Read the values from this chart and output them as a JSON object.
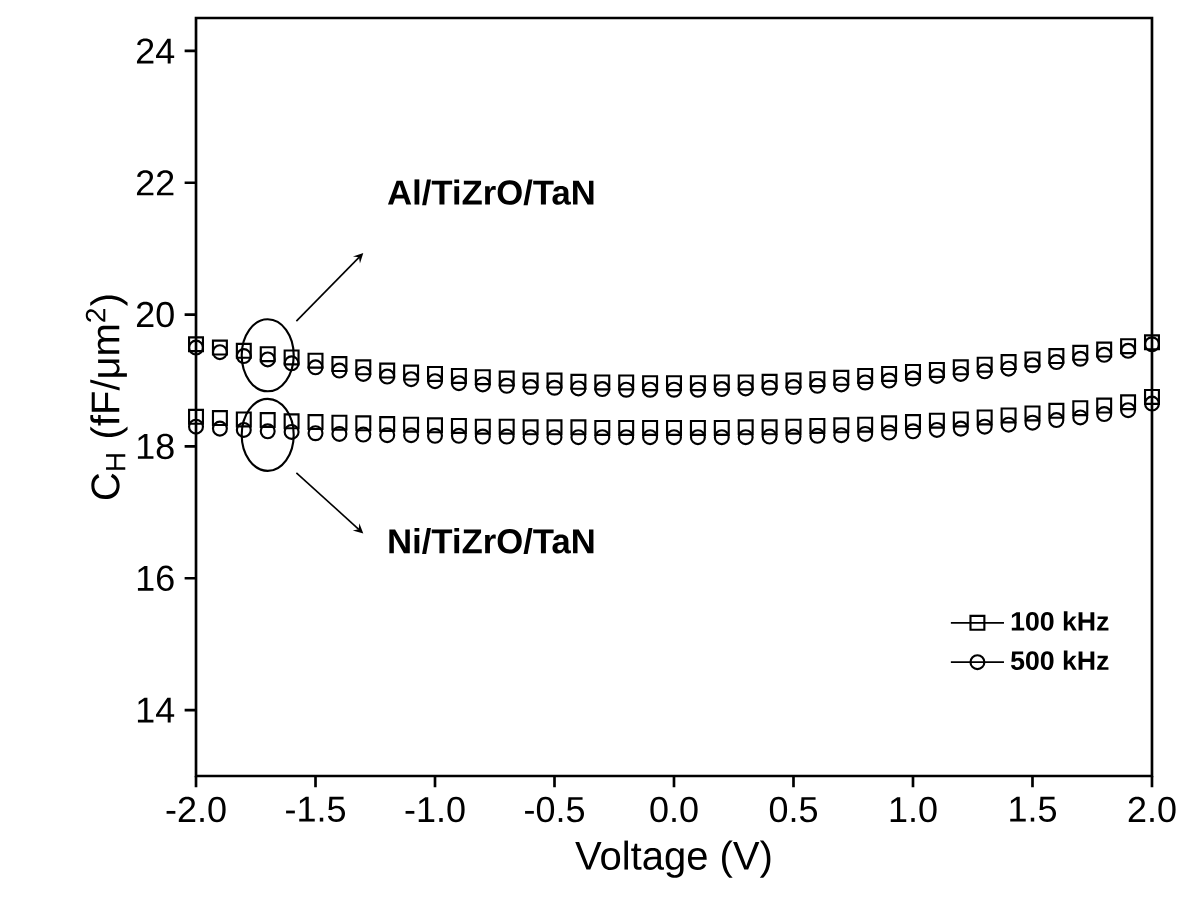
{
  "chart_data": {
    "type": "scatter",
    "xlabel": "Voltage (V)",
    "ylabel": "C$_{H}$ (fF/μm$^{2}$)",
    "x": [
      -2.0,
      -1.9,
      -1.8,
      -1.7,
      -1.6,
      -1.5,
      -1.4,
      -1.3,
      -1.2,
      -1.1,
      -1.0,
      -0.9,
      -0.8,
      -0.7,
      -0.6,
      -0.5,
      -0.4,
      -0.3,
      -0.2,
      -0.1,
      0.0,
      0.1,
      0.2,
      0.3,
      0.4,
      0.5,
      0.6,
      0.7,
      0.8,
      0.9,
      1.0,
      1.1,
      1.2,
      1.3,
      1.4,
      1.5,
      1.6,
      1.7,
      1.8,
      1.9,
      2.0
    ],
    "series": [
      {
        "name": "100 kHz",
        "color": "#000000",
        "marker": "square",
        "values": [
          19.55,
          19.5,
          19.45,
          19.4,
          19.35,
          19.3,
          19.25,
          19.2,
          19.15,
          19.12,
          19.1,
          19.07,
          19.05,
          19.03,
          19.0,
          19.0,
          18.98,
          18.97,
          18.97,
          18.96,
          18.96,
          18.96,
          18.97,
          18.97,
          18.98,
          19.0,
          19.02,
          19.04,
          19.07,
          19.1,
          19.13,
          19.16,
          19.2,
          19.24,
          19.28,
          19.32,
          19.37,
          19.42,
          19.47,
          19.52,
          19.58
        ]
      },
      {
        "name": "500 kHz",
        "color": "#000000",
        "marker": "circle",
        "values": [
          19.5,
          19.43,
          19.37,
          19.32,
          19.26,
          19.2,
          19.15,
          19.1,
          19.06,
          19.02,
          18.99,
          18.96,
          18.94,
          18.92,
          18.9,
          18.89,
          18.88,
          18.87,
          18.86,
          18.86,
          18.86,
          18.86,
          18.87,
          18.88,
          18.89,
          18.9,
          18.92,
          18.94,
          18.97,
          19.0,
          19.03,
          19.07,
          19.1,
          19.14,
          19.18,
          19.23,
          19.28,
          19.33,
          19.39,
          19.45,
          19.55
        ]
      },
      {
        "color": "#000000",
        "marker": "square",
        "values": [
          18.45,
          18.43,
          18.41,
          18.4,
          18.38,
          18.37,
          18.36,
          18.35,
          18.34,
          18.33,
          18.32,
          18.31,
          18.3,
          18.3,
          18.29,
          18.29,
          18.29,
          18.28,
          18.28,
          18.28,
          18.28,
          18.28,
          18.28,
          18.29,
          18.29,
          18.3,
          18.31,
          18.32,
          18.33,
          18.35,
          18.37,
          18.39,
          18.41,
          18.44,
          18.47,
          18.5,
          18.54,
          18.58,
          18.62,
          18.67,
          18.75
        ]
      },
      {
        "color": "#000000",
        "marker": "circle",
        "values": [
          18.3,
          18.27,
          18.25,
          18.23,
          18.22,
          18.2,
          18.19,
          18.18,
          18.17,
          18.17,
          18.16,
          18.16,
          18.15,
          18.15,
          18.14,
          18.14,
          18.14,
          18.14,
          18.14,
          18.14,
          18.14,
          18.14,
          18.14,
          18.14,
          18.15,
          18.15,
          18.16,
          18.17,
          18.19,
          18.21,
          18.23,
          18.25,
          18.27,
          18.3,
          18.33,
          18.36,
          18.4,
          18.44,
          18.49,
          18.55,
          18.65
        ]
      }
    ],
    "annotations": [
      "Al/TiZrO/TaN",
      "Ni/TiZrO/TaN"
    ],
    "xlim": [
      -2.0,
      2.0
    ],
    "xticks": [
      {
        "value": -2.0,
        "label": "-2.0"
      },
      {
        "value": -1.5,
        "label": "-1.5"
      },
      {
        "value": -1.0,
        "label": "-1.0"
      },
      {
        "value": -0.5,
        "label": "-0.5"
      },
      {
        "value": 0.0,
        "label": "0.0"
      },
      {
        "value": 0.5,
        "label": "0.5"
      },
      {
        "value": 1.0,
        "label": "1.0"
      },
      {
        "value": 1.5,
        "label": "1.5"
      },
      {
        "value": 2.0,
        "label": "2.0"
      }
    ],
    "ylim": [
      13,
      24.5
    ],
    "yticks": [
      14,
      16,
      18,
      20,
      22,
      24
    ],
    "legend": "bottom right",
    "grid": false
  }
}
